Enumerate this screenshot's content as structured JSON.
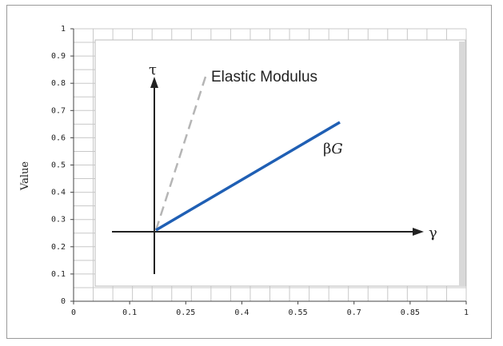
{
  "chart_data": {
    "type": "line",
    "ylabel": "Value",
    "xlabel": "",
    "x_ticks": [
      "0",
      "0.1",
      "0.25",
      "0.4",
      "0.55",
      "0.7",
      "0.85",
      "1"
    ],
    "y_ticks": [
      "0",
      "0.1",
      "0.2",
      "0.3",
      "0.4",
      "0.5",
      "0.6",
      "0.7",
      "0.8",
      "0.9",
      "1"
    ],
    "grid": true,
    "inset": {
      "annotations": {
        "elastic_modulus": "Elastic Modulus",
        "tau": "τ",
        "gamma": "γ",
        "beta": "β",
        "G": "G"
      },
      "colors": {
        "beta_g_line": "#1f5fb4",
        "elastic_line": "#b5b5b5",
        "axes": "#222222"
      },
      "beta_g_line": {
        "from": [
          0,
          0
        ],
        "to": [
          1,
          0.53
        ]
      },
      "elastic_line": {
        "from": [
          0,
          0
        ],
        "to": [
          0.26,
          0.9
        ]
      }
    }
  }
}
